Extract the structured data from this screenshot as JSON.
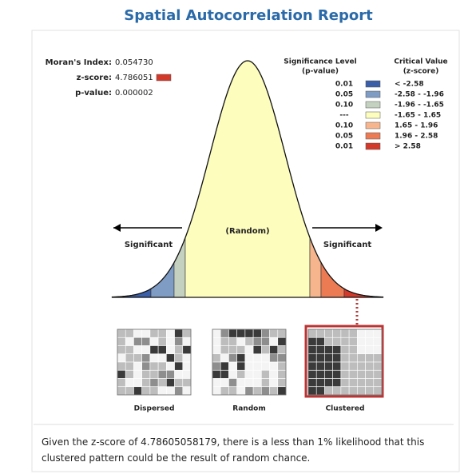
{
  "header": {
    "title": "Spatial Autocorrelation Report"
  },
  "stats": [
    {
      "label": "Moran's Index:",
      "value": "0.054730"
    },
    {
      "label": "z-score:",
      "value": "4.786051"
    },
    {
      "label": "p-value:",
      "value": "0.000002"
    }
  ],
  "legend": {
    "significance_header": [
      "Significance Level",
      "(p-value)"
    ],
    "critical_header": [
      "Critical Value",
      "(z-score)"
    ],
    "rows": [
      {
        "p": "0.01",
        "z": "< -2.58",
        "color": "#3b5ea8"
      },
      {
        "p": "0.05",
        "z": "-2.58 - -1.96",
        "color": "#7f9cc4"
      },
      {
        "p": "0.10",
        "z": "-1.96 - -1.65",
        "color": "#c5d1c0"
      },
      {
        "p": "---",
        "z": "-1.65 - 1.65",
        "color": "#fdfdbe"
      },
      {
        "p": "0.10",
        "z": "1.65 - 1.96",
        "color": "#f6b58c"
      },
      {
        "p": "0.05",
        "z": "1.96 - 2.58",
        "color": "#ec7b54"
      },
      {
        "p": "0.01",
        "z": "> 2.58",
        "color": "#d3392b"
      }
    ]
  },
  "curve": {
    "left_label": "Significant",
    "center_label": "(Random)",
    "right_label": "Significant"
  },
  "patterns": [
    "Dispersed",
    "Random",
    "Clustered"
  ],
  "footer": "Given the z-score of 4.78605058179, there is a less than 1% likelihood that this clustered pattern could be the result of random chance."
}
